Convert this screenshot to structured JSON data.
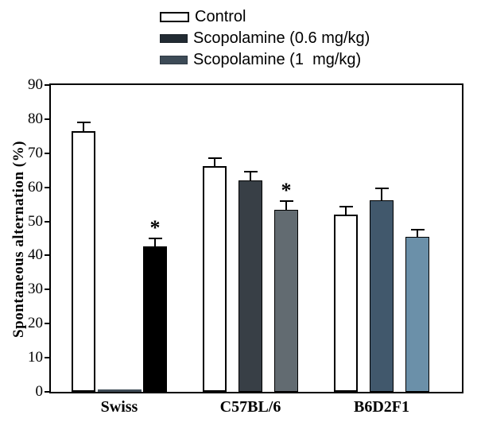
{
  "figure": {
    "background": "#ffffff",
    "axis_color": "#000000",
    "text_color": "#000000"
  },
  "legend": {
    "items": [
      {
        "label": "Control",
        "swatch_color": "#ffffff",
        "swatch_border": "#000000"
      },
      {
        "label": "Scopolamine (0.6 mg/kg)",
        "swatch_color": "#222b33",
        "swatch_border": "#1a2128"
      },
      {
        "label": "Scopolamine (1  mg/kg)",
        "swatch_color": "#3d4b57",
        "swatch_border": "#2e3943"
      }
    ]
  },
  "chart_data": {
    "type": "bar",
    "title": "",
    "xlabel": "",
    "ylabel": "Spontaneous alternation (%)",
    "ylim": [
      0,
      90
    ],
    "yticks": [
      0,
      10,
      20,
      30,
      40,
      50,
      60,
      70,
      80,
      90
    ],
    "grid": false,
    "legend_position": "top-center",
    "error_bars": "upper SEM with caps",
    "significance_marker": "*",
    "series_names": [
      "Control",
      "Scopolamine (0.6 mg/kg)",
      "Scopolamine (1 mg/kg)"
    ],
    "groups": [
      {
        "label": "Swiss",
        "bars": [
          {
            "series": "Control",
            "value": 76.4,
            "sem": 2.6,
            "color": "#ffffff",
            "slot": 0,
            "significant": false
          },
          {
            "series": "near-zero bar (flat at baseline)",
            "value": 0.7,
            "sem": null,
            "color": "#3f4c57",
            "slot": 1,
            "significant": false,
            "flat_artifact": true
          },
          {
            "series": "Scopolamine (0.6 mg/kg)",
            "value": 42.7,
            "sem": 2.2,
            "color": "#000000",
            "slot": 2,
            "significant": true
          }
        ]
      },
      {
        "label": "C57BL/6",
        "bars": [
          {
            "series": "Control",
            "value": 66.3,
            "sem": 2.3,
            "color": "#ffffff",
            "slot": 0,
            "significant": false
          },
          {
            "series": "Scopolamine (0.6 mg/kg)",
            "value": 62.0,
            "sem": 2.6,
            "color": "#383f46",
            "slot": 1,
            "significant": false
          },
          {
            "series": "Scopolamine (1 mg/kg)",
            "value": 53.4,
            "sem": 2.5,
            "color": "#626b71",
            "slot": 2,
            "significant": true
          }
        ]
      },
      {
        "label": "B6D2F1",
        "bars": [
          {
            "series": "Control",
            "value": 52.1,
            "sem": 2.2,
            "color": "#ffffff",
            "slot": 0,
            "significant": false
          },
          {
            "series": "Scopolamine (0.6 mg/kg)",
            "value": 56.3,
            "sem": 3.3,
            "color": "#41586c",
            "slot": 1,
            "significant": false
          },
          {
            "series": "Scopolamine (1 mg/kg)",
            "value": 45.4,
            "sem": 2.2,
            "color": "#6b90a9",
            "slot": 2,
            "significant": false
          }
        ]
      }
    ]
  }
}
